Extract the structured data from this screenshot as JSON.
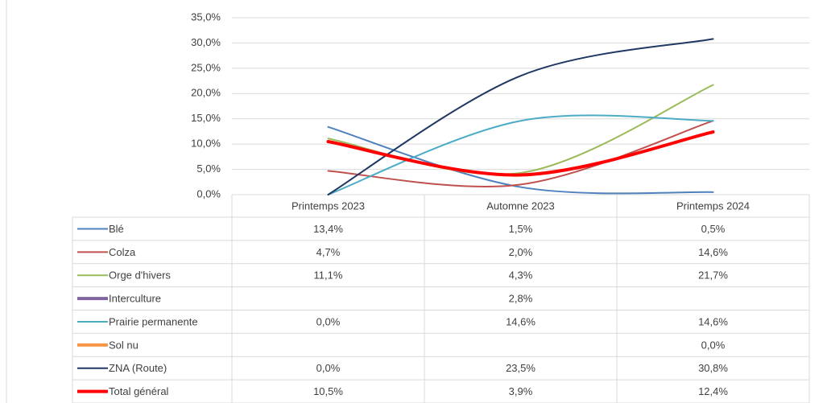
{
  "chart_data": {
    "type": "line",
    "smooth": true,
    "categories": [
      "Printemps 2023",
      "Automne 2023",
      "Printemps 2024"
    ],
    "ylim": [
      0,
      35
    ],
    "yticks": [
      {
        "value": 0,
        "label": "0,0%"
      },
      {
        "value": 5,
        "label": "5,0%"
      },
      {
        "value": 10,
        "label": "10,0%"
      },
      {
        "value": 15,
        "label": "15,0%"
      },
      {
        "value": 20,
        "label": "20,0%"
      },
      {
        "value": 25,
        "label": "25,0%"
      },
      {
        "value": 30,
        "label": "30,0%"
      },
      {
        "value": 35,
        "label": "35,0%"
      }
    ],
    "grid": true,
    "series": [
      {
        "name": "Blé",
        "color": "#4f81bd",
        "values": [
          13.4,
          1.5,
          0.5
        ],
        "value_labels": [
          "13,4%",
          "1,5%",
          "0,5%"
        ]
      },
      {
        "name": "Colza",
        "color": "#c0504d",
        "values": [
          4.7,
          2.0,
          14.6
        ],
        "value_labels": [
          "4,7%",
          "2,0%",
          "14,6%"
        ]
      },
      {
        "name": "Orge d'hivers",
        "color": "#9bbb59",
        "values": [
          11.1,
          4.3,
          21.7
        ],
        "value_labels": [
          "11,1%",
          "4,3%",
          "21,7%"
        ]
      },
      {
        "name": "Interculture",
        "color": "#8064a2",
        "values": [
          null,
          2.8,
          null
        ],
        "value_labels": [
          null,
          "2,8%",
          null
        ]
      },
      {
        "name": "Prairie permanente",
        "color": "#4bacc6",
        "values": [
          0.0,
          14.6,
          14.6
        ],
        "value_labels": [
          "0,0%",
          "14,6%",
          "14,6%"
        ]
      },
      {
        "name": "Sol nu",
        "color": "#f79646",
        "values": [
          null,
          null,
          0.0
        ],
        "value_labels": [
          null,
          null,
          "0,0%"
        ]
      },
      {
        "name": "ZNA (Route)",
        "color": "#1f3864",
        "values": [
          0.0,
          23.5,
          30.8
        ],
        "value_labels": [
          "0,0%",
          "23,5%",
          "30,8%"
        ]
      },
      {
        "name": "Total général",
        "color": "#ff0000",
        "values": [
          10.5,
          3.9,
          12.4
        ],
        "value_labels": [
          "10,5%",
          "3,9%",
          "12,4%"
        ]
      }
    ]
  }
}
